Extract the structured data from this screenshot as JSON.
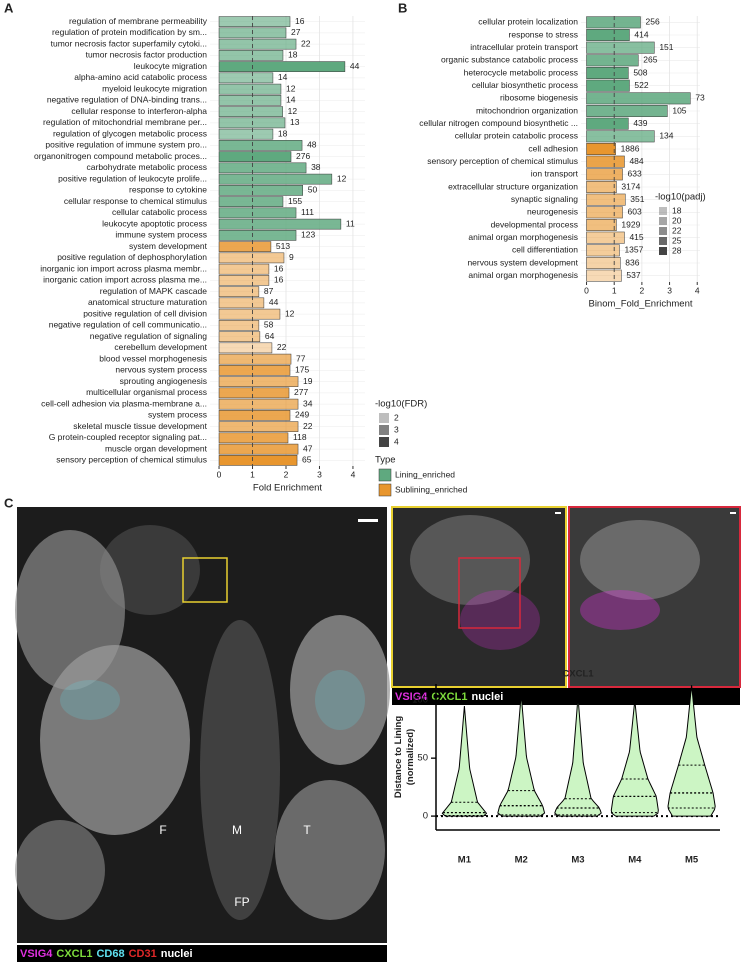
{
  "panels": {
    "a": "A",
    "b": "B",
    "c": "C"
  },
  "chart_data": [
    {
      "type": "bar",
      "orientation": "horizontal",
      "xlabel": "Fold Enrichment",
      "xlim": [
        -0.27,
        4.36
      ],
      "xticks": [
        0,
        1,
        2,
        3,
        4
      ],
      "refline": 1,
      "grid": true,
      "alpha_legend": {
        "title": "-log10(FDR)",
        "ticks": [
          2,
          3,
          4
        ]
      },
      "type_legend_title": "Type",
      "series": [
        {
          "name": "Lining_enriched",
          "color": "#5fa97f",
          "categories": [
            "regulation of membrane permeability",
            "regulation of protein modification by sm...",
            "tumor necrosis factor superfamily cytoki...",
            "tumor necrosis factor production",
            "leukocyte migration",
            "alpha-amino acid catabolic process",
            "myeloid leukocyte migration",
            "negative regulation of DNA-binding trans...",
            "cellular response to interferon-alpha",
            "regulation of mitochondrial membrane per...",
            "regulation of glycogen metabolic process",
            "positive regulation of immune system pro...",
            "organonitrogen compound metabolic proces...",
            "carbohydrate metabolic process",
            "positive regulation of leukocyte prolife...",
            "response to cytokine",
            "cellular response to chemical stimulus",
            "cellular catabolic process",
            "leukocyte apoptotic process",
            "immune system process"
          ],
          "values": [
            2.12,
            2.0,
            2.3,
            1.91,
            3.76,
            1.61,
            1.85,
            1.85,
            1.9,
            1.97,
            1.61,
            2.48,
            2.15,
            2.6,
            3.37,
            2.5,
            1.91,
            2.3,
            3.64,
            2.3
          ],
          "counts": [
            16,
            27,
            22,
            18,
            44,
            14,
            12,
            14,
            12,
            13,
            18,
            48,
            276,
            38,
            12,
            50,
            155,
            111,
            11,
            123
          ],
          "fdr": [
            2.8,
            3.0,
            3.0,
            3.0,
            4.0,
            2.8,
            3.0,
            3.0,
            3.0,
            3.0,
            2.8,
            3.5,
            4.0,
            3.5,
            3.5,
            3.5,
            3.5,
            3.5,
            3.5,
            3.5
          ]
        },
        {
          "name": "Sublining_enriched",
          "color": "#e8962e",
          "categories": [
            "system development",
            "positive regulation of dephosphorylation",
            "inorganic ion import across plasma membr...",
            "inorganic cation import across plasma me...",
            "regulation of MAPK cascade",
            "anatomical structure maturation",
            "positive regulation of cell division",
            "negative regulation of cell communicatio...",
            "negative regulation of signaling",
            "cerebellum development",
            "blood vessel morphogenesis",
            "nervous system process",
            "sprouting angiogenesis",
            "multicellular organismal process",
            "cell-cell adhesion via plasma-membrane a...",
            "system process",
            "skeletal muscle tissue development",
            "G protein-coupled receptor signaling pat...",
            "muscle organ development",
            "sensory perception of chemical stimulus"
          ],
          "values": [
            1.55,
            1.94,
            1.49,
            1.49,
            1.19,
            1.34,
            1.82,
            1.19,
            1.22,
            1.58,
            2.15,
            2.12,
            2.36,
            2.09,
            2.36,
            2.12,
            2.36,
            2.06,
            2.36,
            2.33
          ],
          "counts": [
            513,
            9,
            16,
            16,
            87,
            44,
            12,
            58,
            64,
            22,
            77,
            175,
            19,
            277,
            34,
            249,
            22,
            118,
            47,
            65
          ],
          "fdr": [
            3.5,
            2.5,
            2.5,
            2.5,
            2.5,
            2.5,
            2.5,
            2.5,
            2.5,
            2.0,
            3.0,
            3.5,
            3.0,
            3.5,
            3.0,
            3.5,
            3.0,
            3.5,
            3.5,
            4.0
          ]
        }
      ]
    },
    {
      "type": "bar",
      "orientation": "horizontal",
      "xlabel": "Binom_Fold_Enrichment",
      "xlim": [
        -0.2,
        4.1
      ],
      "xticks": [
        0,
        1,
        2,
        3,
        4
      ],
      "refline": 1,
      "grid": true,
      "alpha_legend": {
        "title": "-log10(padj)",
        "ticks": [
          18,
          20,
          22,
          25,
          28
        ]
      },
      "series": [
        {
          "name": "Lining_enriched",
          "color": "#5fa97f",
          "categories": [
            "cellular protein localization",
            "response to stress",
            "intracellular protein transport",
            "organic substance catabolic process",
            "heterocycle metabolic process",
            "cellular biosynthetic process",
            "ribosome biogenesis",
            "mitochondrion organization",
            "cellular nitrogen compound biosynthetic ...",
            "cellular protein catabolic process"
          ],
          "values": [
            1.95,
            1.55,
            2.45,
            1.87,
            1.51,
            1.55,
            3.75,
            2.92,
            1.51,
            2.45
          ],
          "counts": [
            256,
            414,
            151,
            265,
            508,
            522,
            73,
            105,
            439,
            134
          ],
          "fdr": [
            26,
            28,
            24,
            26,
            28,
            28,
            26,
            26,
            28,
            24
          ]
        },
        {
          "name": "Sublining_enriched",
          "color": "#e8962e",
          "categories": [
            "cell adhesion",
            "sensory perception of chemical stimulus",
            "ion transport",
            "extracellular structure organization",
            "synaptic signaling",
            "neurogenesis",
            "developmental process",
            "animal organ morphogenesis",
            "cell differentiation",
            "nervous system development",
            "animal organ morphogenesis"
          ],
          "values": [
            1.05,
            1.37,
            1.3,
            1.08,
            1.4,
            1.3,
            1.08,
            1.37,
            1.19,
            1.22,
            1.26
          ],
          "counts": [
            1886,
            484,
            633,
            3174,
            351,
            603,
            1929,
            415,
            1357,
            836,
            537
          ],
          "fdr": [
            28,
            26,
            24,
            22,
            22,
            22,
            22,
            20,
            20,
            19,
            18
          ]
        }
      ]
    },
    {
      "type": "violin",
      "title": "CXCL1",
      "ylabel": [
        "Distance to Lining",
        "(normalized)"
      ],
      "categories": [
        "M1",
        "M2",
        "M3",
        "M4",
        "M5"
      ],
      "color": "#ccf5c4",
      "ylim": [
        -12,
        114
      ],
      "yticks": [
        0,
        50,
        100
      ],
      "min": [
        0,
        0,
        0,
        0,
        0
      ],
      "q1": [
        0.5,
        1,
        1,
        3,
        7
      ],
      "median": [
        3,
        9,
        7,
        17,
        20
      ],
      "q3": [
        12,
        22,
        15,
        32,
        44
      ],
      "max": [
        95,
        105,
        103,
        100,
        113
      ]
    }
  ],
  "images": {
    "overview": {
      "labels": [
        "F",
        "M",
        "T",
        "FP"
      ],
      "stains": [
        {
          "name": "VSIG4",
          "color": "#e030e0"
        },
        {
          "name": "CXCL1",
          "color": "#7ddc3c"
        },
        {
          "name": "CD68",
          "color": "#5fe0f0"
        },
        {
          "name": "CD31",
          "color": "#e02828"
        },
        {
          "name": "nuclei",
          "color": "#ffffff"
        }
      ]
    },
    "zoom": {
      "stains": [
        {
          "name": "VSIG4",
          "color": "#e030e0"
        },
        {
          "name": "CXCL1",
          "color": "#7ddc3c"
        },
        {
          "name": "nuclei",
          "color": "#ffffff"
        }
      ]
    }
  }
}
